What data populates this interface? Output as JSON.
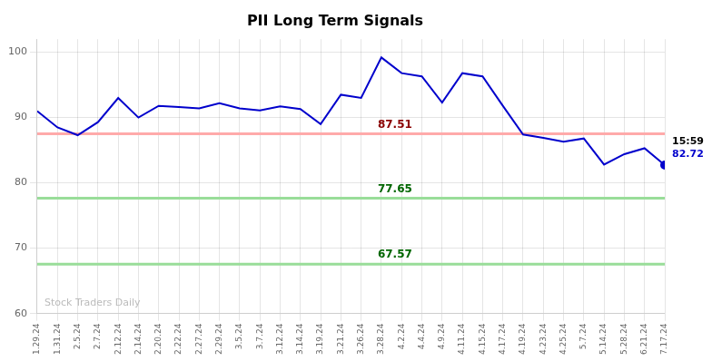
{
  "chart_data": {
    "type": "line",
    "title": "PII Long Term Signals",
    "categories": [
      "1.29.24",
      "1.31.24",
      "2.5.24",
      "2.7.24",
      "2.12.24",
      "2.14.24",
      "2.20.24",
      "2.22.24",
      "2.27.24",
      "2.29.24",
      "3.5.24",
      "3.7.24",
      "3.12.24",
      "3.14.24",
      "3.19.24",
      "3.21.24",
      "3.26.24",
      "3.28.24",
      "4.2.24",
      "4.4.24",
      "4.9.24",
      "4.11.24",
      "4.15.24",
      "4.17.24",
      "4.19.24",
      "4.23.24",
      "4.25.24",
      "5.7.24",
      "5.14.24",
      "5.28.24",
      "6.21.24",
      "7.17.24"
    ],
    "values": [
      91.0,
      88.5,
      87.3,
      89.3,
      93.0,
      90.0,
      91.8,
      91.6,
      91.4,
      92.2,
      91.4,
      91.1,
      91.7,
      91.3,
      89.0,
      93.5,
      93.0,
      99.2,
      96.8,
      96.3,
      92.3,
      96.8,
      96.3,
      91.8,
      87.4,
      86.9,
      86.3,
      86.8,
      82.8,
      84.4,
      85.3,
      82.72
    ],
    "color": "#0000cc",
    "ylim": [
      60,
      102
    ],
    "yticks": [
      60,
      70,
      80,
      90,
      100
    ],
    "grid": true,
    "hlines": [
      {
        "value": 87.51,
        "label": "87.51",
        "color": "#ffaaaa",
        "label_color": "#8b0000"
      },
      {
        "value": 77.65,
        "label": "77.65",
        "color": "#99dd99",
        "label_color": "#006600"
      },
      {
        "value": 67.57,
        "label": "67.57",
        "color": "#99dd99",
        "label_color": "#006600"
      }
    ],
    "last_point": {
      "time_label": "15:59",
      "value_label": "82.72",
      "color": "#0000cc"
    },
    "watermark": "Stock Traders Daily",
    "watermark_color": "#bbbbbb"
  }
}
